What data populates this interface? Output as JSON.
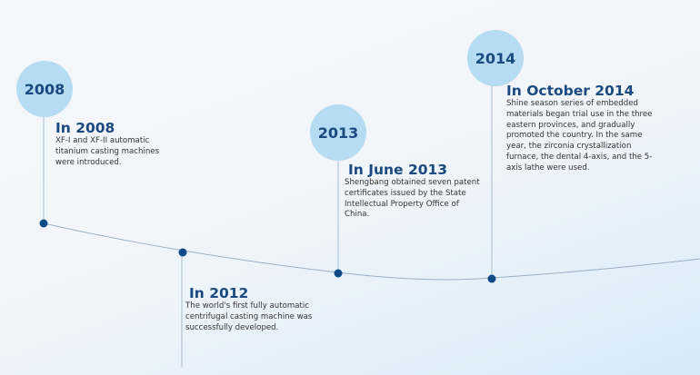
{
  "colors": {
    "accent": "#1b4a80",
    "bubble": "#b5dcf3",
    "dot": "#0d4a86",
    "line": "#9bb0c4"
  },
  "events": [
    {
      "year": "2008",
      "title": "In 2008",
      "text": "XF-I and XF-II automatic titanium casting machines were introduced."
    },
    {
      "title": "In 2012",
      "text": "The world's first fully automatic centrifugal casting machine was successfully developed."
    },
    {
      "year": "2013",
      "title": "In June 2013",
      "text": "Shengbang obtained seven patent certificates issued by the State Intellectual Property Office of China."
    },
    {
      "year": "2014",
      "title": "In October 2014",
      "text": "Shine season series of embedded materials began trial use in the three eastern provinces, and gradually promoted the country. In the same year, the zirconia crystallization furnace, the dental 4-axis, and the 5-axis lathe were used."
    }
  ]
}
